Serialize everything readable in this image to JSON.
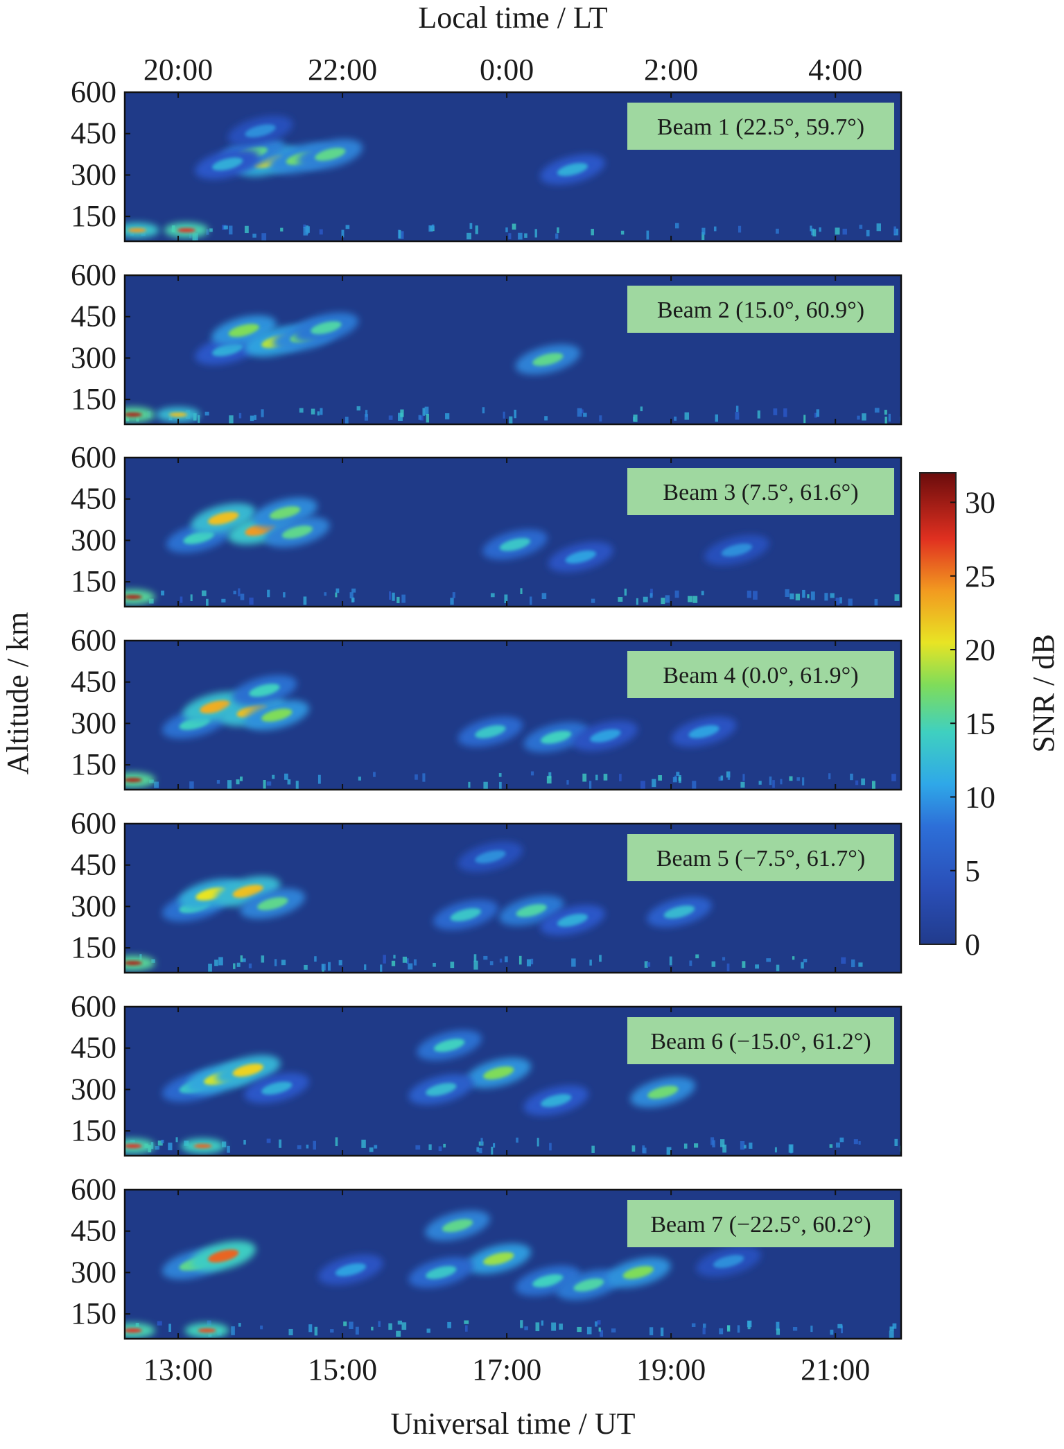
{
  "colors": {
    "background_low": "#1f3a88",
    "colormap_stops": [
      "#213b8c",
      "#2a56c8",
      "#2fa0e0",
      "#3fd0c0",
      "#7fdc5a",
      "#e8e424",
      "#f29a20",
      "#e03020",
      "#7a1010"
    ],
    "beam_label_bg": "#9fd8a0"
  },
  "chart_data": {
    "type": "heatmap",
    "top_xlabel": "Local time / LT",
    "top_ticks": [
      "20:00",
      "22:00",
      "0:00",
      "2:00",
      "4:00"
    ],
    "xlabel": "Universal time / UT",
    "x_ticks": [
      "13:00",
      "15:00",
      "17:00",
      "19:00",
      "21:00"
    ],
    "x_tick_values_ut_hours": [
      13,
      15,
      17,
      19,
      21
    ],
    "xlim_ut_hours": [
      12.35,
      21.8
    ],
    "ylabel": "Altitude / km",
    "y_ticks": [
      "600",
      "450",
      "300",
      "150"
    ],
    "y_tick_values_km": [
      600,
      450,
      300,
      150
    ],
    "ylim_km": [
      60,
      600
    ],
    "colorbar": {
      "label": "SNR / dB",
      "ticks": [
        "30",
        "25",
        "20",
        "15",
        "10",
        "5",
        "0"
      ],
      "range": [
        0,
        32
      ]
    },
    "panels": [
      {
        "label": "Beam 1 (22.5°, 59.7°)",
        "blobs": [
          {
            "t": 14.1,
            "alt": 350,
            "snr": 20
          },
          {
            "t": 13.9,
            "alt": 380,
            "snr": 14
          },
          {
            "t": 14.5,
            "alt": 360,
            "snr": 15
          },
          {
            "t": 14.85,
            "alt": 375,
            "snr": 14
          },
          {
            "t": 13.6,
            "alt": 340,
            "snr": 9
          },
          {
            "t": 14.0,
            "alt": 460,
            "snr": 7
          },
          {
            "t": 17.8,
            "alt": 320,
            "snr": 9
          },
          {
            "t": 12.5,
            "alt": 100,
            "snr": 24
          },
          {
            "t": 13.1,
            "alt": 100,
            "snr": 28
          }
        ]
      },
      {
        "label": "Beam 2 (15.0°, 60.9°)",
        "blobs": [
          {
            "t": 13.6,
            "alt": 330,
            "snr": 9
          },
          {
            "t": 13.8,
            "alt": 400,
            "snr": 16
          },
          {
            "t": 14.2,
            "alt": 360,
            "snr": 18
          },
          {
            "t": 14.55,
            "alt": 380,
            "snr": 15
          },
          {
            "t": 14.8,
            "alt": 410,
            "snr": 13
          },
          {
            "t": 17.5,
            "alt": 295,
            "snr": 14
          },
          {
            "t": 12.45,
            "alt": 95,
            "snr": 30
          },
          {
            "t": 13.0,
            "alt": 95,
            "snr": 22
          }
        ]
      },
      {
        "label": "Beam 3 (7.5°, 61.6°)",
        "blobs": [
          {
            "t": 13.25,
            "alt": 310,
            "snr": 12
          },
          {
            "t": 13.55,
            "alt": 380,
            "snr": 22
          },
          {
            "t": 14.0,
            "alt": 340,
            "snr": 24
          },
          {
            "t": 14.3,
            "alt": 400,
            "snr": 15
          },
          {
            "t": 14.45,
            "alt": 330,
            "snr": 14
          },
          {
            "t": 17.1,
            "alt": 285,
            "snr": 11
          },
          {
            "t": 17.9,
            "alt": 240,
            "snr": 8
          },
          {
            "t": 19.8,
            "alt": 265,
            "snr": 7
          },
          {
            "t": 12.45,
            "alt": 95,
            "snr": 30
          }
        ]
      },
      {
        "label": "Beam 4 (0.0°, 61.9°)",
        "blobs": [
          {
            "t": 13.2,
            "alt": 300,
            "snr": 12
          },
          {
            "t": 13.45,
            "alt": 360,
            "snr": 23
          },
          {
            "t": 13.9,
            "alt": 345,
            "snr": 22
          },
          {
            "t": 14.2,
            "alt": 330,
            "snr": 16
          },
          {
            "t": 14.05,
            "alt": 420,
            "snr": 12
          },
          {
            "t": 16.8,
            "alt": 270,
            "snr": 11
          },
          {
            "t": 17.6,
            "alt": 250,
            "snr": 12
          },
          {
            "t": 18.2,
            "alt": 255,
            "snr": 8
          },
          {
            "t": 19.4,
            "alt": 270,
            "snr": 8
          },
          {
            "t": 12.45,
            "alt": 95,
            "snr": 30
          }
        ]
      },
      {
        "label": "Beam 5 (−7.5°, 61.7°)",
        "blobs": [
          {
            "t": 13.2,
            "alt": 300,
            "snr": 12
          },
          {
            "t": 13.4,
            "alt": 345,
            "snr": 20
          },
          {
            "t": 13.85,
            "alt": 355,
            "snr": 22
          },
          {
            "t": 14.15,
            "alt": 310,
            "snr": 14
          },
          {
            "t": 16.5,
            "alt": 270,
            "snr": 11
          },
          {
            "t": 17.3,
            "alt": 285,
            "snr": 13
          },
          {
            "t": 17.8,
            "alt": 250,
            "snr": 9
          },
          {
            "t": 19.1,
            "alt": 280,
            "snr": 10
          },
          {
            "t": 16.8,
            "alt": 480,
            "snr": 7
          },
          {
            "t": 12.45,
            "alt": 95,
            "snr": 30
          }
        ]
      },
      {
        "label": "Beam 6 (−15.0°, 61.2°)",
        "blobs": [
          {
            "t": 13.2,
            "alt": 310,
            "snr": 11
          },
          {
            "t": 13.5,
            "alt": 340,
            "snr": 19
          },
          {
            "t": 13.85,
            "alt": 370,
            "snr": 21
          },
          {
            "t": 14.2,
            "alt": 305,
            "snr": 9
          },
          {
            "t": 16.3,
            "alt": 460,
            "snr": 12
          },
          {
            "t": 16.9,
            "alt": 360,
            "snr": 16
          },
          {
            "t": 16.2,
            "alt": 300,
            "snr": 10
          },
          {
            "t": 17.6,
            "alt": 260,
            "snr": 9
          },
          {
            "t": 18.9,
            "alt": 290,
            "snr": 15
          },
          {
            "t": 12.45,
            "alt": 95,
            "snr": 28
          },
          {
            "t": 13.3,
            "alt": 95,
            "snr": 26
          }
        ]
      },
      {
        "label": "Beam 7 (−22.5°, 60.2°)",
        "blobs": [
          {
            "t": 13.2,
            "alt": 330,
            "snr": 14
          },
          {
            "t": 13.55,
            "alt": 360,
            "snr": 26
          },
          {
            "t": 16.4,
            "alt": 470,
            "snr": 14
          },
          {
            "t": 16.9,
            "alt": 350,
            "snr": 17
          },
          {
            "t": 16.2,
            "alt": 300,
            "snr": 11
          },
          {
            "t": 17.5,
            "alt": 270,
            "snr": 12
          },
          {
            "t": 18.0,
            "alt": 255,
            "snr": 13
          },
          {
            "t": 18.6,
            "alt": 300,
            "snr": 16
          },
          {
            "t": 19.7,
            "alt": 340,
            "snr": 7
          },
          {
            "t": 15.1,
            "alt": 310,
            "snr": 8
          },
          {
            "t": 12.45,
            "alt": 90,
            "snr": 28
          },
          {
            "t": 13.35,
            "alt": 90,
            "snr": 27
          }
        ]
      }
    ]
  }
}
